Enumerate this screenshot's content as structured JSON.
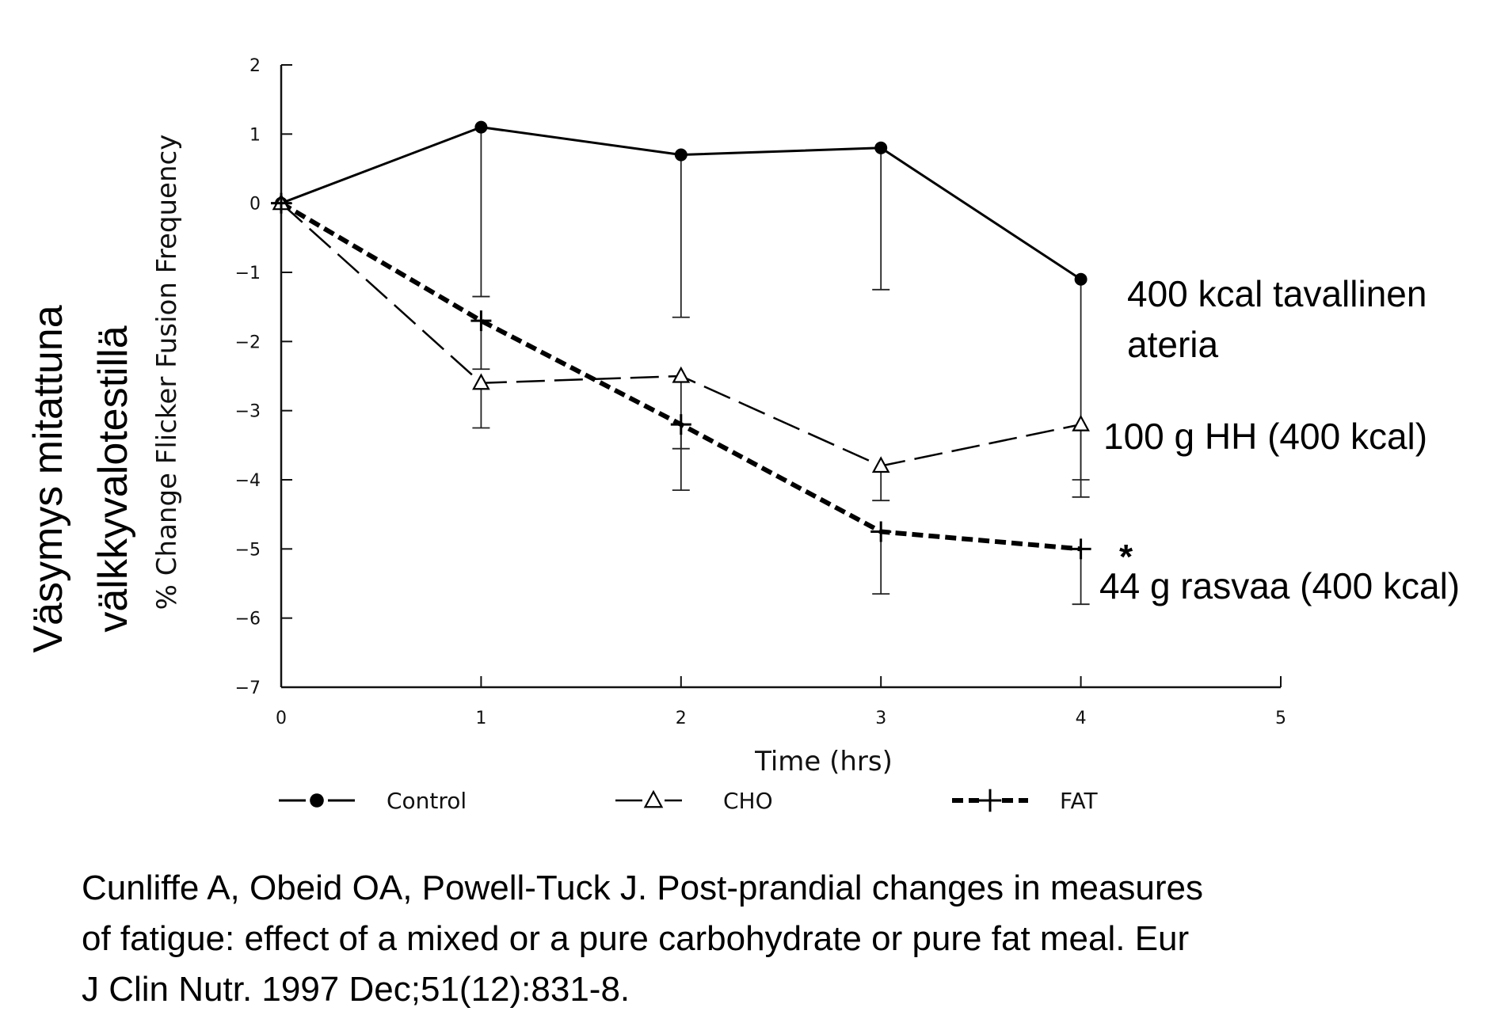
{
  "chart_data": {
    "type": "line",
    "x": [
      0,
      1,
      2,
      3,
      4
    ],
    "xlim": [
      0,
      5
    ],
    "ylim": [
      -7,
      2
    ],
    "x_ticks": [
      "0",
      "1",
      "2",
      "3",
      "4",
      "5"
    ],
    "y_ticks": [
      "2",
      "1",
      "0",
      "−1",
      "−2",
      "−3",
      "−4",
      "−5",
      "−6",
      "−7"
    ],
    "xlabel": "Time (hrs)",
    "ylabel": "% Change Flicker Fusion Frequency",
    "outer_ylabel_lines": [
      "Väsymys mitattuna",
      "välkkyvalotestillä"
    ],
    "grid": false,
    "legend_position": "bottom",
    "series": [
      {
        "name": "Control",
        "marker": "filled-circle",
        "line_style": "solid",
        "values": [
          0,
          1.1,
          0.7,
          0.8,
          -1.1
        ],
        "err_low": [
          0,
          -1.35,
          -1.65,
          -1.25,
          -4.0
        ],
        "color": "#000000"
      },
      {
        "name": "CHO",
        "marker": "open-triangle",
        "line_style": "long-dash",
        "values": [
          0,
          -2.6,
          -2.5,
          -3.8,
          -3.2
        ],
        "err_low": [
          0,
          -3.25,
          -3.55,
          -4.3,
          -4.25
        ],
        "color": "#000000"
      },
      {
        "name": "FAT",
        "marker": "plus",
        "line_style": "bold-dash",
        "values": [
          0,
          -1.7,
          -3.2,
          -4.75,
          -5.0
        ],
        "err_low": [
          0,
          -2.4,
          -4.15,
          -5.65,
          -5.8
        ],
        "color": "#000000"
      }
    ],
    "annotations": [
      {
        "lines": [
          "400 kcal tavallinen",
          "ateria"
        ]
      },
      {
        "lines": [
          "100 g HH (400 kcal)"
        ]
      },
      {
        "lines": [
          "*"
        ]
      },
      {
        "lines": [
          "44  g rasvaa  (400 kcal)"
        ]
      }
    ]
  },
  "citation": {
    "lines": [
      "Cunliffe A, Obeid OA, Powell-Tuck J. Post-prandial changes in measures",
      "of fatigue: effect of a mixed or a pure carbohydrate or pure fat meal. Eur",
      "J Clin Nutr. 1997 Dec;51(12):831-8."
    ]
  }
}
